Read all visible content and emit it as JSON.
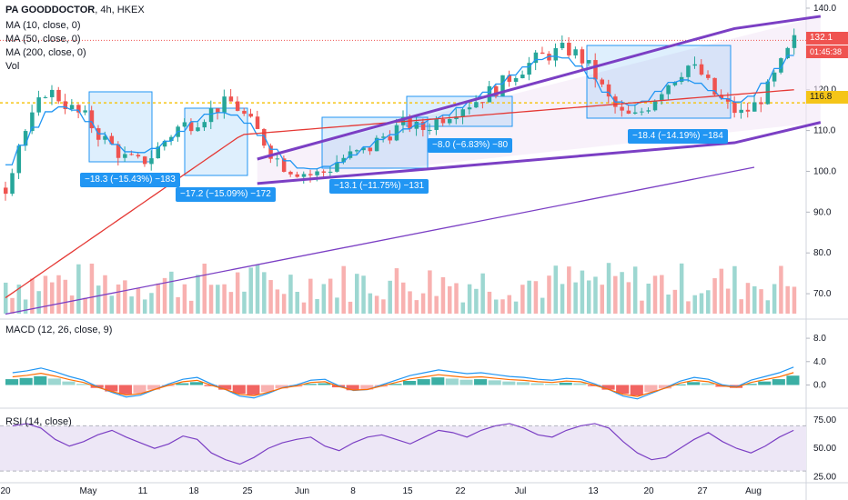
{
  "symbol": {
    "name": "PA GOODDOCTOR",
    "interval": "4h",
    "exchange": "HKEX"
  },
  "legend": [
    {
      "label": "MA (10, close, 0)",
      "color": "#2196f3"
    },
    {
      "label": "MA (50, close, 0)",
      "color": "#e53935"
    },
    {
      "label": "MA (200, close, 0)",
      "color": "#7b3fc4"
    },
    {
      "label": "Vol",
      "color": "#131722"
    }
  ],
  "price_tags": {
    "last": "132.1",
    "countdown": "01:45:38",
    "level": "116.8"
  },
  "macd_label": "MACD (12, 26, close, 9)",
  "rsi_label": "RSI (14, close)",
  "annotations": [
    "−18.3 (−15.43%) −183",
    "−17.2 (−15.09%) −172",
    "−13.1 (−11.75%) −131",
    "−8.0 (−6.83%) −80",
    "−18.4 (−14.19%) −184"
  ],
  "colors": {
    "up": "#26a69a",
    "down": "#ef5350",
    "ma10": "#2196f3",
    "ma50": "#e53935",
    "ma200": "#7b3fc4",
    "channel": "#7b3fc4",
    "box": "#2196f3",
    "level": "#f5c518",
    "rsi": "#7b3fc4",
    "rsi_band": "#ede7f6",
    "channel_fill": "#f3e5f5"
  },
  "chart_data": {
    "type": "candlestick",
    "x_ticks": [
      "20",
      "May",
      "11",
      "18",
      "25",
      "Jun",
      "8",
      "15",
      "22",
      "Jul",
      "13",
      "20",
      "27",
      "Aug"
    ],
    "price_axis": {
      "ticks": [
        "140.0",
        "130.0",
        "120.0",
        "110.0",
        "100.0",
        "90.0",
        "80.0",
        "70.0"
      ],
      "ylim": [
        64,
        142
      ]
    },
    "macd_axis": {
      "ticks": [
        "8.0",
        "4.0",
        "0.0"
      ],
      "ylim": [
        -3.5,
        10.5
      ]
    },
    "rsi_axis": {
      "ticks": [
        "75.00",
        "50.00",
        "25.00"
      ],
      "ylim": [
        22,
        80
      ],
      "bands": [
        30,
        70
      ]
    },
    "ma200": [
      [
        0,
        65
      ],
      [
        113,
        101
      ]
    ],
    "channel": {
      "upper": [
        [
          38,
          103
        ],
        [
          110,
          135
        ],
        [
          123,
          138
        ]
      ],
      "lower": [
        [
          38,
          97
        ],
        [
          110,
          107
        ],
        [
          123,
          112
        ]
      ]
    },
    "level": 116.8,
    "last": 132.1,
    "close_path": [
      96,
      107,
      113,
      120,
      118,
      115,
      113,
      109,
      106,
      103,
      102,
      104,
      108,
      111,
      112,
      114,
      116,
      117,
      113,
      109,
      104,
      101,
      100,
      99,
      100,
      103,
      104,
      105,
      108,
      110,
      112,
      110,
      112,
      114,
      116,
      117,
      119,
      121,
      124,
      126,
      128,
      129,
      130,
      128,
      124,
      118,
      114,
      113,
      116,
      120,
      123,
      126,
      124,
      119,
      116,
      114,
      116,
      120,
      126,
      132
    ],
    "macd_hist": [
      1,
      1.2,
      1.5,
      1.1,
      0.6,
      0.2,
      -0.5,
      -1.1,
      -1.6,
      -1.4,
      -0.8,
      -0.2,
      0.3,
      0.5,
      -0.2,
      -0.8,
      -1.5,
      -1.7,
      -1.2,
      -0.6,
      -0.3,
      0.2,
      0.3,
      -0.4,
      -0.9,
      -0.8,
      -0.3,
      0.2,
      0.7,
      1,
      1.3,
      1.1,
      0.9,
      1,
      0.8,
      0.6,
      0.5,
      0.3,
      0.2,
      0.4,
      0.3,
      -0.2,
      -0.8,
      -1.5,
      -1.8,
      -1.2,
      -0.6,
      0.1,
      0.5,
      0.3,
      -0.3,
      -0.5,
      0.2,
      0.6,
      1,
      1.6
    ],
    "rsi": [
      70,
      72,
      68,
      58,
      52,
      56,
      62,
      66,
      60,
      55,
      50,
      54,
      61,
      58,
      46,
      40,
      36,
      42,
      50,
      55,
      58,
      60,
      52,
      48,
      55,
      60,
      62,
      58,
      54,
      60,
      66,
      64,
      60,
      66,
      70,
      72,
      68,
      62,
      60,
      66,
      70,
      72,
      68,
      56,
      46,
      40,
      42,
      50,
      58,
      64,
      56,
      50,
      46,
      52,
      60,
      66
    ]
  }
}
